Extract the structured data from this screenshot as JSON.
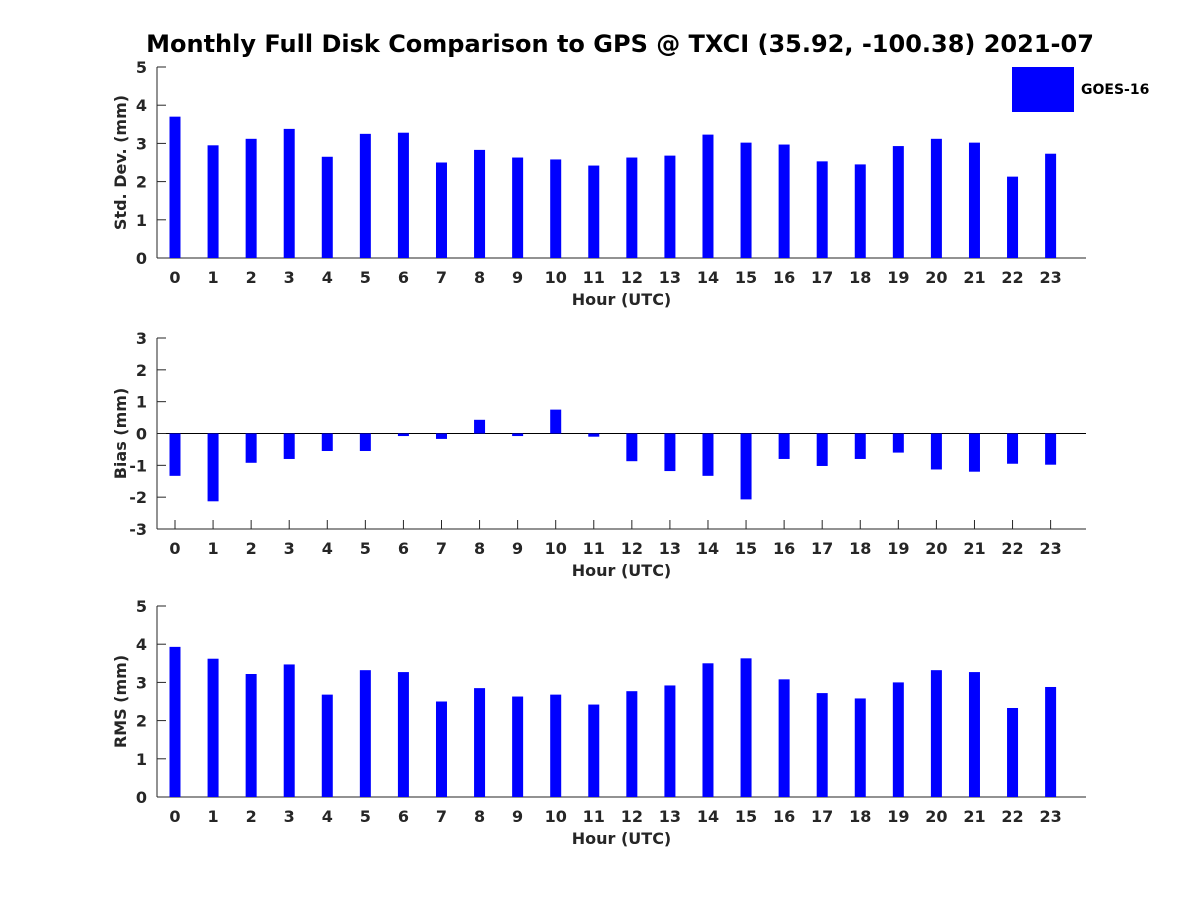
{
  "title": "Monthly Full Disk Comparison to GPS @ TXCI (35.92, -100.38) 2021-07",
  "legend": {
    "label": "GOES-16",
    "color": "#0000ff"
  },
  "chart_data": [
    {
      "type": "bar",
      "series": [
        {
          "name": "GOES-16",
          "values": [
            3.7,
            2.95,
            3.12,
            3.38,
            2.65,
            3.25,
            3.28,
            2.5,
            2.83,
            2.63,
            2.58,
            2.42,
            2.63,
            2.68,
            3.23,
            3.02,
            2.97,
            2.53,
            2.45,
            2.93,
            3.12,
            3.02,
            2.13,
            2.73
          ]
        }
      ],
      "categories": [
        "0",
        "1",
        "2",
        "3",
        "4",
        "5",
        "6",
        "7",
        "8",
        "9",
        "10",
        "11",
        "12",
        "13",
        "14",
        "15",
        "16",
        "17",
        "18",
        "19",
        "20",
        "21",
        "22",
        "23"
      ],
      "xlabel": "Hour (UTC)",
      "ylabel": "Std. Dev. (mm)",
      "ylim": [
        0,
        5
      ],
      "yticks": [
        "0",
        "1",
        "2",
        "3",
        "4",
        "5"
      ],
      "grid": false
    },
    {
      "type": "bar",
      "series": [
        {
          "name": "GOES-16",
          "values": [
            -1.33,
            -2.13,
            -0.92,
            -0.8,
            -0.55,
            -0.55,
            -0.08,
            -0.17,
            0.43,
            -0.08,
            0.75,
            -0.1,
            -0.87,
            -1.18,
            -1.33,
            -2.07,
            -0.8,
            -1.02,
            -0.8,
            -0.6,
            -1.13,
            -1.2,
            -0.95,
            -0.98
          ]
        }
      ],
      "categories": [
        "0",
        "1",
        "2",
        "3",
        "4",
        "5",
        "6",
        "7",
        "8",
        "9",
        "10",
        "11",
        "12",
        "13",
        "14",
        "15",
        "16",
        "17",
        "18",
        "19",
        "20",
        "21",
        "22",
        "23"
      ],
      "xlabel": "Hour (UTC)",
      "ylabel": "Bias (mm)",
      "ylim": [
        -3,
        3
      ],
      "yticks": [
        "-3",
        "-2",
        "-1",
        "0",
        "1",
        "2",
        "3"
      ],
      "grid": false
    },
    {
      "type": "bar",
      "series": [
        {
          "name": "GOES-16",
          "values": [
            3.93,
            3.62,
            3.22,
            3.47,
            2.68,
            3.32,
            3.27,
            2.5,
            2.85,
            2.63,
            2.68,
            2.42,
            2.77,
            2.92,
            3.5,
            3.63,
            3.08,
            2.72,
            2.58,
            3.0,
            3.32,
            3.27,
            2.33,
            2.88
          ]
        }
      ],
      "categories": [
        "0",
        "1",
        "2",
        "3",
        "4",
        "5",
        "6",
        "7",
        "8",
        "9",
        "10",
        "11",
        "12",
        "13",
        "14",
        "15",
        "16",
        "17",
        "18",
        "19",
        "20",
        "21",
        "22",
        "23"
      ],
      "xlabel": "Hour (UTC)",
      "ylabel": "RMS (mm)",
      "ylim": [
        0,
        5
      ],
      "yticks": [
        "0",
        "1",
        "2",
        "3",
        "4",
        "5"
      ],
      "grid": false
    }
  ]
}
